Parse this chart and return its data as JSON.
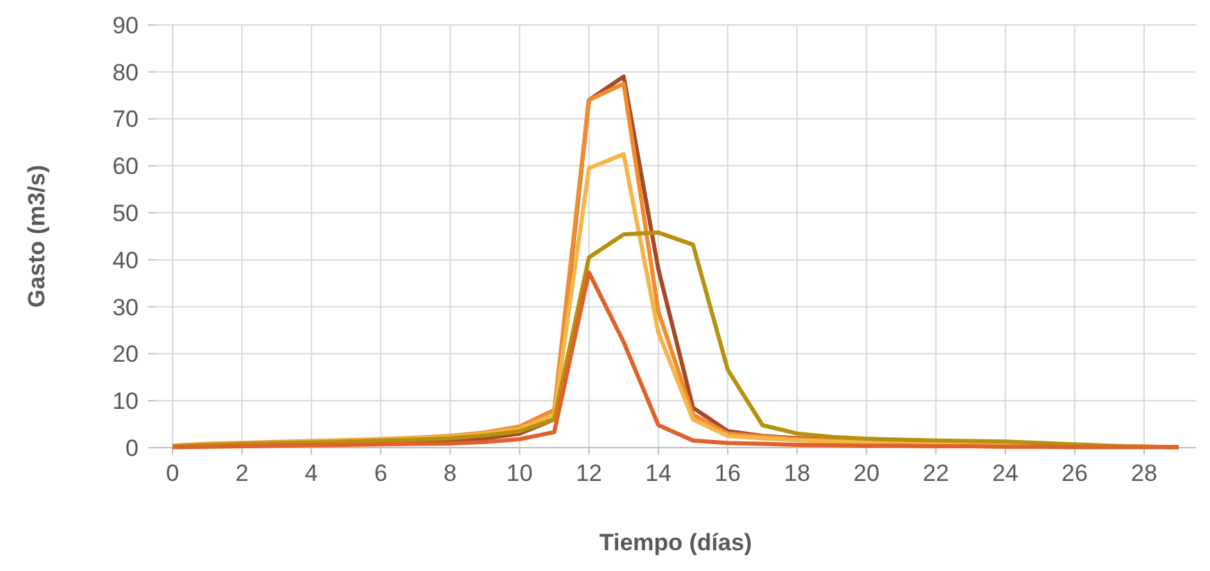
{
  "chart_data": {
    "type": "line",
    "xlabel": "Tiempo (días)",
    "ylabel": "Gasto (m3/s)",
    "x": [
      0,
      1,
      2,
      3,
      4,
      5,
      6,
      7,
      8,
      9,
      10,
      11,
      12,
      13,
      14,
      15,
      16,
      17,
      18,
      19,
      20,
      21,
      22,
      23,
      24,
      25,
      26,
      27,
      28,
      29
    ],
    "xlim": [
      -0.5,
      29.5
    ],
    "xticks": [
      0,
      2,
      4,
      6,
      8,
      10,
      12,
      14,
      16,
      18,
      20,
      22,
      24,
      26,
      28
    ],
    "ylim": [
      0,
      90
    ],
    "yticks": [
      0,
      10,
      20,
      30,
      40,
      50,
      60,
      70,
      80,
      90
    ],
    "grid": true,
    "line_style": "solid",
    "marker": "none",
    "series": [
      {
        "color": "#a34a28",
        "values": [
          0.3,
          0.5,
          0.7,
          0.8,
          0.9,
          1,
          1.1,
          1.3,
          1.5,
          2,
          3,
          6,
          74,
          79,
          38,
          8.5,
          3.5,
          2.5,
          2,
          1.6,
          1.4,
          1.2,
          1.1,
          1,
          0.9,
          0.7,
          0.5,
          0.3,
          0.2,
          0.1
        ]
      },
      {
        "color": "#f08c30",
        "values": [
          0.4,
          0.8,
          1,
          1.2,
          1.4,
          1.6,
          1.8,
          2.1,
          2.5,
          3.2,
          4.5,
          8,
          74,
          77.5,
          29,
          7,
          3,
          2.4,
          1.8,
          1.5,
          1.3,
          1.1,
          1,
          0.9,
          0.8,
          0.6,
          0.5,
          0.3,
          0.2,
          0.1
        ]
      },
      {
        "color": "#f5b548",
        "values": [
          0.4,
          0.7,
          0.9,
          1.1,
          1.3,
          1.5,
          1.7,
          2,
          2.3,
          3,
          4,
          7,
          59.5,
          62.5,
          24.5,
          6,
          2.5,
          2,
          1.6,
          1.3,
          1.1,
          1,
          0.9,
          0.8,
          0.7,
          0.6,
          0.4,
          0.3,
          0.2,
          0.1
        ]
      },
      {
        "color": "#b8900f",
        "values": [
          0.3,
          0.6,
          0.8,
          1,
          1.1,
          1.3,
          1.5,
          1.7,
          2,
          2.6,
          3.5,
          6,
          40.5,
          45.4,
          45.8,
          43.2,
          16.6,
          4.8,
          3,
          2.3,
          1.9,
          1.7,
          1.5,
          1.4,
          1.3,
          1,
          0.7,
          0.4,
          0.2,
          0.1
        ]
      },
      {
        "color": "#e0622a",
        "values": [
          0.1,
          0.2,
          0.3,
          0.4,
          0.5,
          0.6,
          0.7,
          0.8,
          0.9,
          1.2,
          1.8,
          3.3,
          37.3,
          22.5,
          4.8,
          1.5,
          1,
          0.8,
          0.6,
          0.5,
          0.4,
          0.4,
          0.3,
          0.3,
          0.2,
          0.2,
          0.1,
          0.1,
          0.1,
          0.1
        ]
      }
    ]
  }
}
